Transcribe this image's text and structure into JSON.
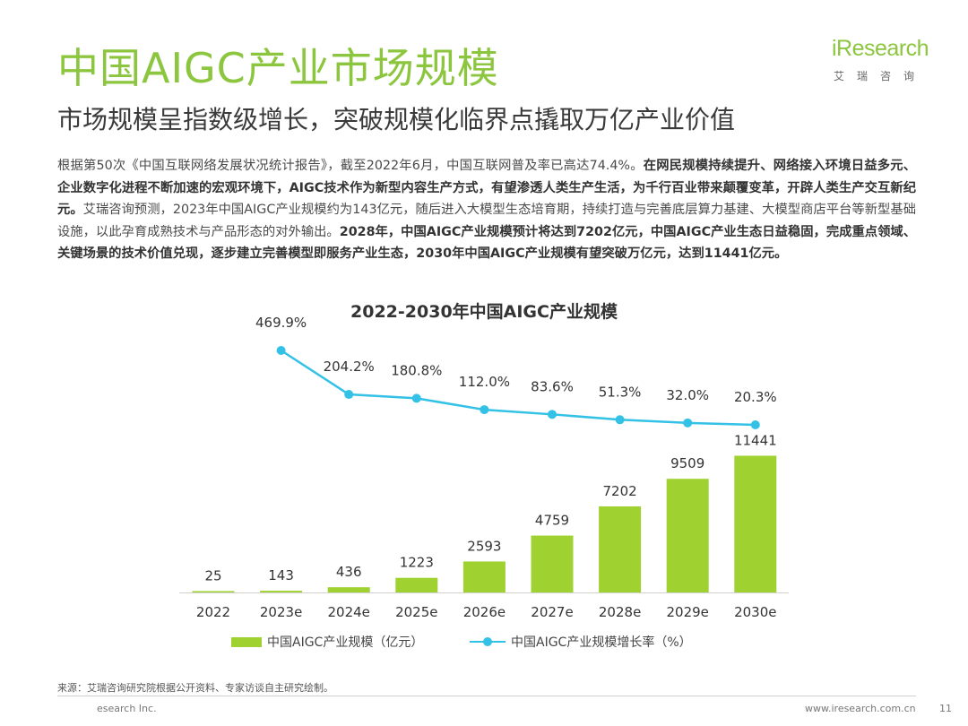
{
  "header": {
    "title": "中国AIGC产业市场规模",
    "subtitle": "市场规模呈指数级增长，突破规模化临界点撬取万亿产业价值"
  },
  "logo": {
    "word": "iResearch",
    "sub": "艾瑞咨询"
  },
  "paragraph": {
    "p1": "根据第50次《中国互联网络发展状况统计报告》，截至2022年6月，中国互联网普及率已高达74.4%。",
    "p2": "在网民规模持续提升、网络接入环境日益多元、企业数字化进程不断加速的宏观环境下，AIGC技术作为新型内容生产方式，有望渗透人类生产生活，为千行百业带来颠覆变革，开辟人类生产交互新纪元。",
    "p3": "艾瑞咨询预测，2023年中国AIGC产业规模约为143亿元，随后进入大模型生态培育期，持续打造与完善底层算力基建、大模型商店平台等新型基础设施，以此孕育成熟技术与产品形态的对外输出。",
    "p4": "2028年，中国AIGC产业规模预计将达到7202亿元，中国AIGC产业生态日益稳固，完成重点领域、关键场景的技术价值兑现，逐步建立完善模型即服务产业生态，2030年中国AIGC产业规模有望突破万亿元，达到11441亿元。"
  },
  "chart_data": {
    "type": "bar+line",
    "title": "2022-2030年中国AIGC产业规模",
    "categories": [
      "2022",
      "2023e",
      "2024e",
      "2025e",
      "2026e",
      "2027e",
      "2028e",
      "2029e",
      "2030e"
    ],
    "series": [
      {
        "name": "中国AIGC产业规模（亿元）",
        "type": "bar",
        "color": "#9fd231",
        "values": [
          25,
          143,
          436,
          1223,
          2593,
          4759,
          7202,
          9509,
          11441
        ],
        "labels": [
          "25",
          "143",
          "436",
          "1223",
          "2593",
          "4759",
          "7202",
          "9509",
          "11441"
        ]
      },
      {
        "name": "中国AIGC产业规模增长率（%）",
        "type": "line",
        "color": "#33c1e6",
        "values": [
          null,
          469.9,
          204.2,
          180.8,
          112.0,
          83.6,
          51.3,
          32.0,
          20.3
        ],
        "labels": [
          "",
          "469.9%",
          "204.2%",
          "180.8%",
          "112.0%",
          "83.6%",
          "51.3%",
          "32.0%",
          "20.3%"
        ]
      }
    ],
    "legend_position": "bottom",
    "grid": false
  },
  "footer": {
    "source": "来源：艾瑞咨询研究院根据公开资料、专家访谈自主研究绘制。",
    "copyright": "esearch Inc.",
    "url": "www.iresearch.com.cn",
    "page": "11"
  }
}
